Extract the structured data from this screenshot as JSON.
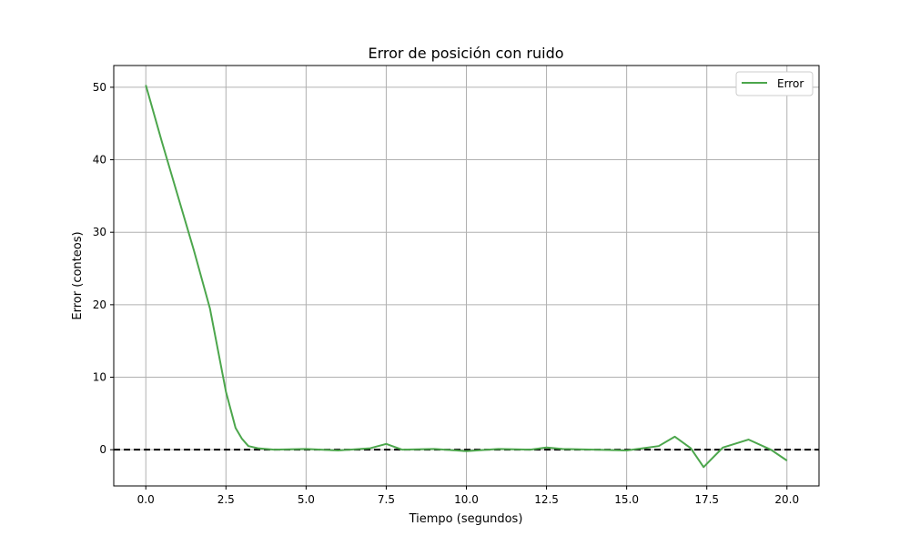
{
  "chart_data": {
    "type": "line",
    "title": "Error de posición con ruido",
    "xlabel": "Tiempo (segundos)",
    "ylabel": "Error (conteos)",
    "xlim": [
      -1.0,
      21.0
    ],
    "ylim": [
      -5.0,
      53.0
    ],
    "x_ticks": [
      0.0,
      2.5,
      5.0,
      7.5,
      10.0,
      12.5,
      15.0,
      17.5,
      20.0
    ],
    "x_tick_labels": [
      "0.0",
      "2.5",
      "5.0",
      "7.5",
      "10.0",
      "12.5",
      "15.0",
      "17.5",
      "20.0"
    ],
    "y_ticks": [
      0,
      10,
      20,
      30,
      40,
      50
    ],
    "y_tick_labels": [
      "0",
      "10",
      "20",
      "30",
      "40",
      "50"
    ],
    "grid": true,
    "legend_position": "top-right",
    "reference_line": {
      "y": 0,
      "style": "dashed",
      "color": "#000000"
    },
    "series": [
      {
        "name": "Error",
        "color": "#4ca64c",
        "x": [
          0.0,
          0.5,
          1.0,
          1.5,
          2.0,
          2.5,
          2.8,
          3.0,
          3.2,
          3.5,
          4.0,
          5.0,
          6.0,
          7.0,
          7.5,
          8.0,
          9.0,
          10.0,
          11.0,
          12.0,
          12.5,
          13.0,
          14.0,
          15.0,
          16.0,
          16.5,
          17.0,
          17.4,
          18.0,
          18.8,
          19.5,
          20.0
        ],
        "y": [
          50.3,
          42.5,
          35.0,
          27.5,
          19.5,
          8.0,
          3.0,
          1.5,
          0.5,
          0.2,
          0.0,
          0.1,
          -0.1,
          0.2,
          0.8,
          0.0,
          0.1,
          -0.2,
          0.1,
          0.0,
          0.3,
          0.1,
          0.0,
          -0.1,
          0.5,
          1.8,
          0.2,
          -2.4,
          0.3,
          1.4,
          0.0,
          -1.5
        ]
      }
    ]
  }
}
